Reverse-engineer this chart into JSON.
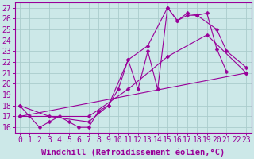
{
  "xlabel": "Windchill (Refroidissement éolien,°C)",
  "bg_color": "#cce8e8",
  "grid_color": "#aacccc",
  "line_color": "#990099",
  "xlim": [
    -0.5,
    23.5
  ],
  "ylim": [
    15.5,
    27.5
  ],
  "xticks": [
    0,
    1,
    2,
    3,
    4,
    5,
    6,
    7,
    8,
    9,
    10,
    11,
    12,
    13,
    14,
    15,
    16,
    17,
    18,
    19,
    20,
    21,
    22,
    23
  ],
  "yticks": [
    16,
    17,
    18,
    19,
    20,
    21,
    22,
    23,
    24,
    25,
    26,
    27
  ],
  "line1_x": [
    0,
    1,
    2,
    3,
    4,
    5,
    6,
    7,
    8,
    9,
    10,
    11,
    12,
    13,
    14,
    15,
    16,
    17,
    18,
    19,
    20,
    21
  ],
  "line1_y": [
    18.0,
    17.0,
    16.0,
    16.5,
    17.0,
    16.5,
    16.0,
    16.0,
    17.5,
    18.0,
    19.5,
    22.2,
    19.5,
    23.0,
    19.5,
    27.0,
    25.8,
    26.3,
    26.3,
    26.5,
    23.2,
    21.1
  ],
  "line2_x": [
    0,
    3,
    7,
    9,
    11,
    13,
    15,
    16,
    17,
    18,
    20,
    21,
    23
  ],
  "line2_y": [
    18.0,
    17.0,
    16.5,
    18.0,
    22.2,
    23.5,
    27.0,
    25.8,
    26.5,
    26.3,
    25.0,
    23.0,
    21.5
  ],
  "line3_x": [
    0,
    7,
    11,
    15,
    19,
    23
  ],
  "line3_y": [
    17.0,
    17.0,
    19.5,
    22.5,
    24.5,
    21.0
  ],
  "line4_x": [
    0,
    23
  ],
  "line4_y": [
    17.0,
    21.0
  ],
  "markersize": 2.5,
  "fontsize_tick": 7,
  "fontsize_xlabel": 7.5
}
